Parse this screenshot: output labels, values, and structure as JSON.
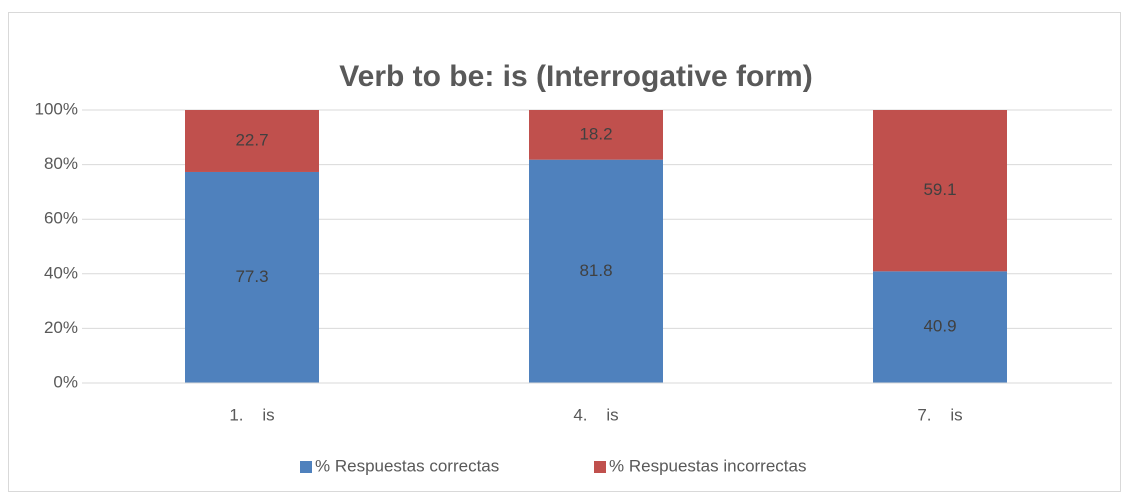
{
  "chart_data": {
    "type": "stacked_bar",
    "title": "Verb to be: is (Interrogative form)",
    "categories": [
      "1.    is",
      "4.    is",
      "7.    is"
    ],
    "series": [
      {
        "name": "% Respuestas correctas",
        "color": "#4f81bd",
        "values": [
          77.3,
          81.8,
          40.9
        ]
      },
      {
        "name": "% Respuestas incorrectas",
        "color": "#c0504d",
        "values": [
          22.7,
          18.2,
          59.1
        ]
      }
    ],
    "ylim": [
      0,
      100
    ],
    "yticks": [
      {
        "value": 0,
        "label": "0%"
      },
      {
        "value": 20,
        "label": "20%"
      },
      {
        "value": 40,
        "label": "40%"
      },
      {
        "value": 60,
        "label": "60%"
      },
      {
        "value": 80,
        "label": "80%"
      },
      {
        "value": 100,
        "label": "100%"
      }
    ],
    "grid": true,
    "legend": "bottom"
  }
}
